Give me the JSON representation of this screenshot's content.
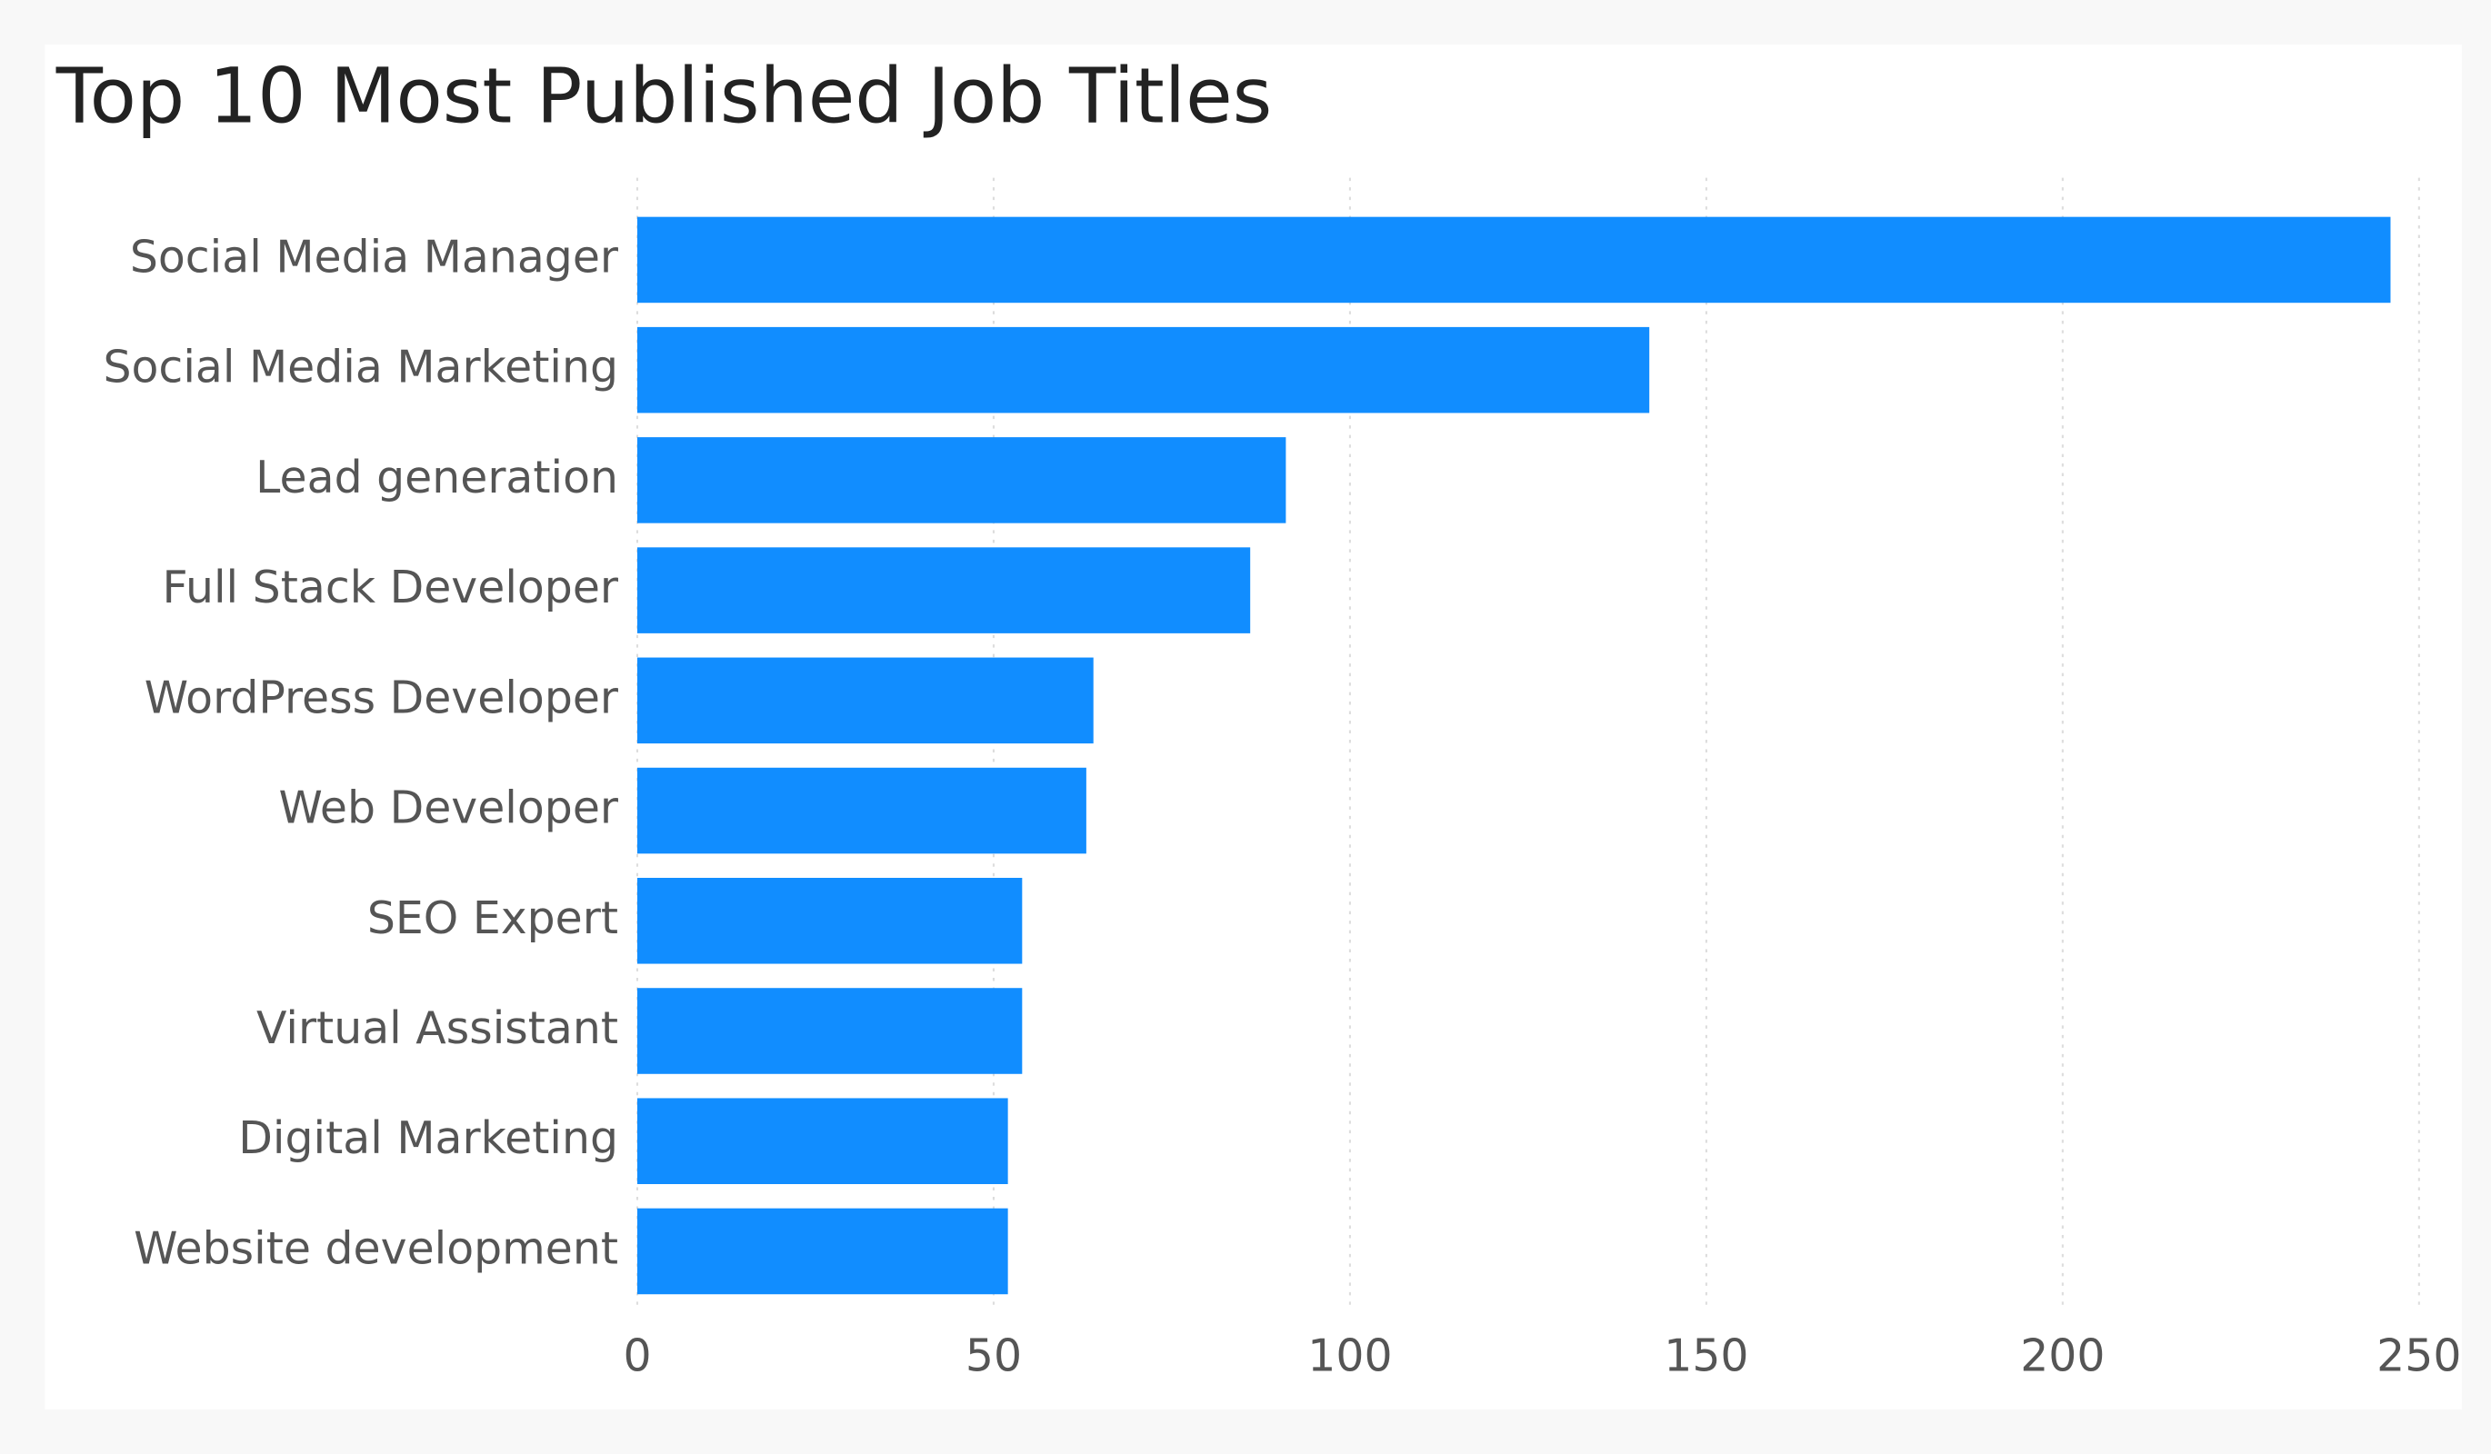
{
  "chart_data": {
    "type": "bar",
    "orientation": "horizontal",
    "title": "Top 10 Most Published Job Titles",
    "categories": [
      "Social Media Manager",
      "Social Media Marketing",
      "Lead generation",
      "Full Stack Developer",
      "WordPress Developer",
      "Web Developer",
      "SEO Expert",
      "Virtual Assistant",
      "Digital Marketing",
      "Website development"
    ],
    "values": [
      246,
      142,
      91,
      86,
      64,
      63,
      54,
      54,
      52,
      52
    ],
    "color": "#118dff",
    "xlim": [
      0,
      250
    ],
    "xticks": [
      0,
      50,
      100,
      150,
      200,
      250
    ],
    "grid": true
  }
}
